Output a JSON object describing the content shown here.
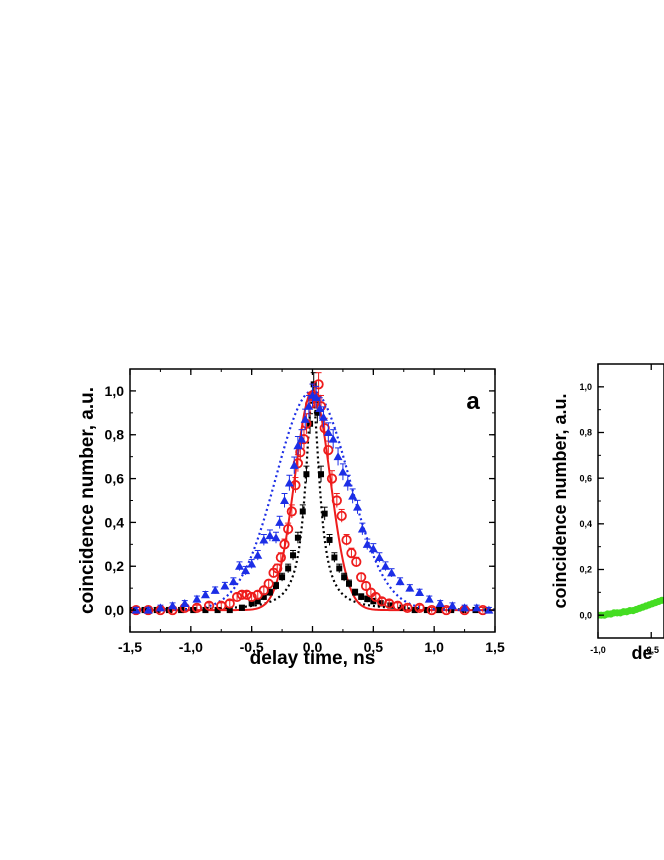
{
  "chart_data": [
    {
      "type": "scatter",
      "panel_label": "a",
      "xlabel": "delay time, ns",
      "ylabel": "coincidence number, a.u.",
      "xlim": [
        -1.5,
        1.5
      ],
      "ylim": [
        -0.1,
        1.1
      ],
      "x_ticks": [
        "-1,5",
        "-1,0",
        "-0,5",
        "0,0",
        "0,5",
        "1,0",
        "1,5"
      ],
      "y_ticks": [
        "0,0",
        "0,2",
        "0,4",
        "0,6",
        "0,8",
        "1,0"
      ],
      "series": [
        {
          "name": "black squares",
          "color": "#000000",
          "marker": "square",
          "fit": "dotted",
          "points": [
            [
              -1.48,
              0.0
            ],
            [
              -1.38,
              0.0
            ],
            [
              -1.28,
              0.0
            ],
            [
              -1.18,
              0.0
            ],
            [
              -1.08,
              0.0
            ],
            [
              -0.98,
              0.0
            ],
            [
              -0.88,
              0.0
            ],
            [
              -0.78,
              0.0
            ],
            [
              -0.68,
              0.0
            ],
            [
              -0.58,
              0.01
            ],
            [
              -0.5,
              0.03
            ],
            [
              -0.45,
              0.04
            ],
            [
              -0.4,
              0.06
            ],
            [
              -0.35,
              0.08
            ],
            [
              -0.3,
              0.11
            ],
            [
              -0.25,
              0.15
            ],
            [
              -0.2,
              0.19
            ],
            [
              -0.16,
              0.25
            ],
            [
              -0.12,
              0.33
            ],
            [
              -0.08,
              0.45
            ],
            [
              -0.05,
              0.62
            ],
            [
              -0.02,
              0.85
            ],
            [
              0.01,
              1.03
            ],
            [
              0.04,
              0.9
            ],
            [
              0.07,
              0.62
            ],
            [
              0.1,
              0.44
            ],
            [
              0.14,
              0.32
            ],
            [
              0.18,
              0.24
            ],
            [
              0.22,
              0.19
            ],
            [
              0.26,
              0.15
            ],
            [
              0.3,
              0.12
            ],
            [
              0.35,
              0.08
            ],
            [
              0.4,
              0.06
            ],
            [
              0.45,
              0.05
            ],
            [
              0.5,
              0.04
            ],
            [
              0.56,
              0.03
            ],
            [
              0.64,
              0.02
            ],
            [
              0.74,
              0.01
            ],
            [
              0.84,
              0.0
            ],
            [
              0.94,
              0.0
            ],
            [
              1.04,
              0.0
            ],
            [
              1.14,
              0.0
            ],
            [
              1.24,
              0.0
            ],
            [
              1.34,
              0.0
            ],
            [
              1.44,
              0.0
            ]
          ]
        },
        {
          "name": "red open circles",
          "color": "#ee1c1c",
          "marker": "open-circle",
          "fit": "solid",
          "points": [
            [
              -1.45,
              0.0
            ],
            [
              -1.35,
              0.0
            ],
            [
              -1.25,
              0.0
            ],
            [
              -1.15,
              0.0
            ],
            [
              -1.05,
              0.01
            ],
            [
              -0.95,
              0.01
            ],
            [
              -0.85,
              0.02
            ],
            [
              -0.75,
              0.02
            ],
            [
              -0.68,
              0.03
            ],
            [
              -0.62,
              0.06
            ],
            [
              -0.58,
              0.07
            ],
            [
              -0.54,
              0.07
            ],
            [
              -0.5,
              0.06
            ],
            [
              -0.45,
              0.07
            ],
            [
              -0.4,
              0.09
            ],
            [
              -0.36,
              0.12
            ],
            [
              -0.32,
              0.17
            ],
            [
              -0.29,
              0.19
            ],
            [
              -0.26,
              0.24
            ],
            [
              -0.23,
              0.3
            ],
            [
              -0.2,
              0.37
            ],
            [
              -0.17,
              0.45
            ],
            [
              -0.14,
              0.57
            ],
            [
              -0.12,
              0.67
            ],
            [
              -0.1,
              0.72
            ],
            [
              -0.07,
              0.78
            ],
            [
              -0.05,
              0.85
            ],
            [
              -0.02,
              0.94
            ],
            [
              0.0,
              0.98
            ],
            [
              0.02,
              0.97
            ],
            [
              0.05,
              1.03
            ],
            [
              0.07,
              0.93
            ],
            [
              0.1,
              0.83
            ],
            [
              0.13,
              0.73
            ],
            [
              0.16,
              0.6
            ],
            [
              0.2,
              0.5
            ],
            [
              0.24,
              0.43
            ],
            [
              0.28,
              0.32
            ],
            [
              0.32,
              0.26
            ],
            [
              0.36,
              0.22
            ],
            [
              0.4,
              0.15
            ],
            [
              0.44,
              0.11
            ],
            [
              0.48,
              0.08
            ],
            [
              0.52,
              0.06
            ],
            [
              0.57,
              0.04
            ],
            [
              0.63,
              0.03
            ],
            [
              0.7,
              0.02
            ],
            [
              0.78,
              0.01
            ],
            [
              0.88,
              0.01
            ],
            [
              0.98,
              0.0
            ],
            [
              1.1,
              0.0
            ],
            [
              1.25,
              0.0
            ],
            [
              1.4,
              0.0
            ]
          ]
        },
        {
          "name": "blue triangles",
          "color": "#1c2ee6",
          "marker": "triangle",
          "fit": "dotted",
          "points": [
            [
              -1.45,
              0.0
            ],
            [
              -1.35,
              0.0
            ],
            [
              -1.25,
              0.01
            ],
            [
              -1.15,
              0.02
            ],
            [
              -1.05,
              0.03
            ],
            [
              -0.95,
              0.05
            ],
            [
              -0.88,
              0.07
            ],
            [
              -0.8,
              0.09
            ],
            [
              -0.72,
              0.11
            ],
            [
              -0.65,
              0.13
            ],
            [
              -0.6,
              0.2
            ],
            [
              -0.55,
              0.18
            ],
            [
              -0.5,
              0.21
            ],
            [
              -0.45,
              0.25
            ],
            [
              -0.4,
              0.32
            ],
            [
              -0.35,
              0.34
            ],
            [
              -0.3,
              0.33
            ],
            [
              -0.27,
              0.4
            ],
            [
              -0.23,
              0.5
            ],
            [
              -0.19,
              0.58
            ],
            [
              -0.15,
              0.66
            ],
            [
              -0.12,
              0.75
            ],
            [
              -0.09,
              0.78
            ],
            [
              -0.06,
              0.87
            ],
            [
              -0.03,
              0.93
            ],
            [
              0.0,
              0.98
            ],
            [
              0.03,
              0.97
            ],
            [
              0.06,
              0.92
            ],
            [
              0.09,
              0.88
            ],
            [
              0.13,
              0.81
            ],
            [
              0.17,
              0.78
            ],
            [
              0.21,
              0.7
            ],
            [
              0.25,
              0.63
            ],
            [
              0.29,
              0.58
            ],
            [
              0.33,
              0.52
            ],
            [
              0.37,
              0.47
            ],
            [
              0.41,
              0.37
            ],
            [
              0.45,
              0.3
            ],
            [
              0.5,
              0.28
            ],
            [
              0.55,
              0.24
            ],
            [
              0.6,
              0.2
            ],
            [
              0.65,
              0.17
            ],
            [
              0.72,
              0.13
            ],
            [
              0.8,
              0.1
            ],
            [
              0.88,
              0.08
            ],
            [
              0.96,
              0.05
            ],
            [
              1.05,
              0.03
            ],
            [
              1.15,
              0.02
            ],
            [
              1.25,
              0.01
            ],
            [
              1.35,
              0.01
            ],
            [
              1.45,
              0.0
            ]
          ]
        }
      ]
    },
    {
      "type": "scatter",
      "xlabel": "de",
      "ylabel": "coincidence number, a.u.",
      "xlim": [
        -1.0,
        -0.38
      ],
      "ylim": [
        -0.1,
        1.1
      ],
      "x_ticks": [
        "-1,0",
        "-0,5"
      ],
      "y_ticks": [
        "0,0",
        "0,2",
        "0,4",
        "0,6",
        "0,8",
        "1,0"
      ],
      "series": [
        {
          "name": "green",
          "color": "#44dd22",
          "marker": "filled-circle",
          "points": [
            [
              -1.0,
              0.0
            ],
            [
              -0.97,
              0.0
            ],
            [
              -0.94,
              0.0
            ],
            [
              -0.91,
              0.005
            ],
            [
              -0.88,
              0.005
            ],
            [
              -0.85,
              0.01
            ],
            [
              -0.82,
              0.01
            ],
            [
              -0.79,
              0.01
            ],
            [
              -0.76,
              0.015
            ],
            [
              -0.73,
              0.015
            ],
            [
              -0.7,
              0.02
            ],
            [
              -0.67,
              0.02
            ],
            [
              -0.64,
              0.025
            ],
            [
              -0.61,
              0.03
            ],
            [
              -0.58,
              0.035
            ],
            [
              -0.55,
              0.04
            ],
            [
              -0.52,
              0.045
            ],
            [
              -0.49,
              0.05
            ],
            [
              -0.46,
              0.055
            ],
            [
              -0.43,
              0.06
            ],
            [
              -0.4,
              0.065
            ]
          ]
        }
      ]
    }
  ]
}
